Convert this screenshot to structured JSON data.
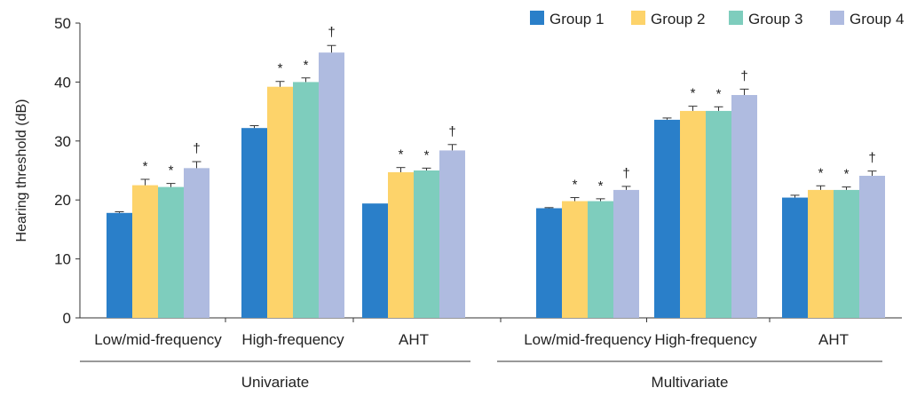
{
  "chart_data": {
    "type": "bar",
    "ylabel": "Hearing threshold (dB)",
    "ylim": [
      0,
      50
    ],
    "yticks": [
      0,
      10,
      20,
      30,
      40,
      50
    ],
    "categories": [
      "Low/mid-frequency",
      "High-frequency",
      "AHT",
      "Low/mid-frequency",
      "High-frequency",
      "AHT"
    ],
    "groups": [
      {
        "label": "Univariate",
        "category_indices": [
          0,
          1,
          2
        ]
      },
      {
        "label": "Multivariate",
        "category_indices": [
          3,
          4,
          5
        ]
      }
    ],
    "legend_position": "top-right",
    "grid": false,
    "series": [
      {
        "name": "Group 1",
        "color": "#2a7fc9",
        "values": [
          17.8,
          32.2,
          19.4,
          18.6,
          33.6,
          20.4
        ],
        "errors": [
          0.2,
          0.4,
          0.0,
          0.1,
          0.3,
          0.4
        ],
        "markers": [
          "",
          "",
          "",
          "",
          "",
          ""
        ]
      },
      {
        "name": "Group 2",
        "color": "#fdd36a",
        "values": [
          22.5,
          39.2,
          24.7,
          19.8,
          35.1,
          21.7
        ],
        "errors": [
          1.0,
          0.9,
          0.8,
          0.6,
          0.8,
          0.7
        ],
        "markers": [
          "*",
          "*",
          "*",
          "*",
          "*",
          "*"
        ]
      },
      {
        "name": "Group 3",
        "color": "#7ecdbd",
        "values": [
          22.2,
          40.0,
          25.0,
          19.8,
          35.1,
          21.7
        ],
        "errors": [
          0.6,
          0.7,
          0.4,
          0.4,
          0.7,
          0.5
        ],
        "markers": [
          "*",
          "*",
          "*",
          "*",
          "*",
          "*"
        ]
      },
      {
        "name": "Group 4",
        "color": "#afbbe0",
        "values": [
          25.4,
          45.0,
          28.4,
          21.7,
          37.8,
          24.1
        ],
        "errors": [
          1.1,
          1.2,
          1.0,
          0.6,
          1.0,
          0.8
        ],
        "markers": [
          "†",
          "†",
          "†",
          "†",
          "†",
          "†"
        ]
      }
    ]
  }
}
